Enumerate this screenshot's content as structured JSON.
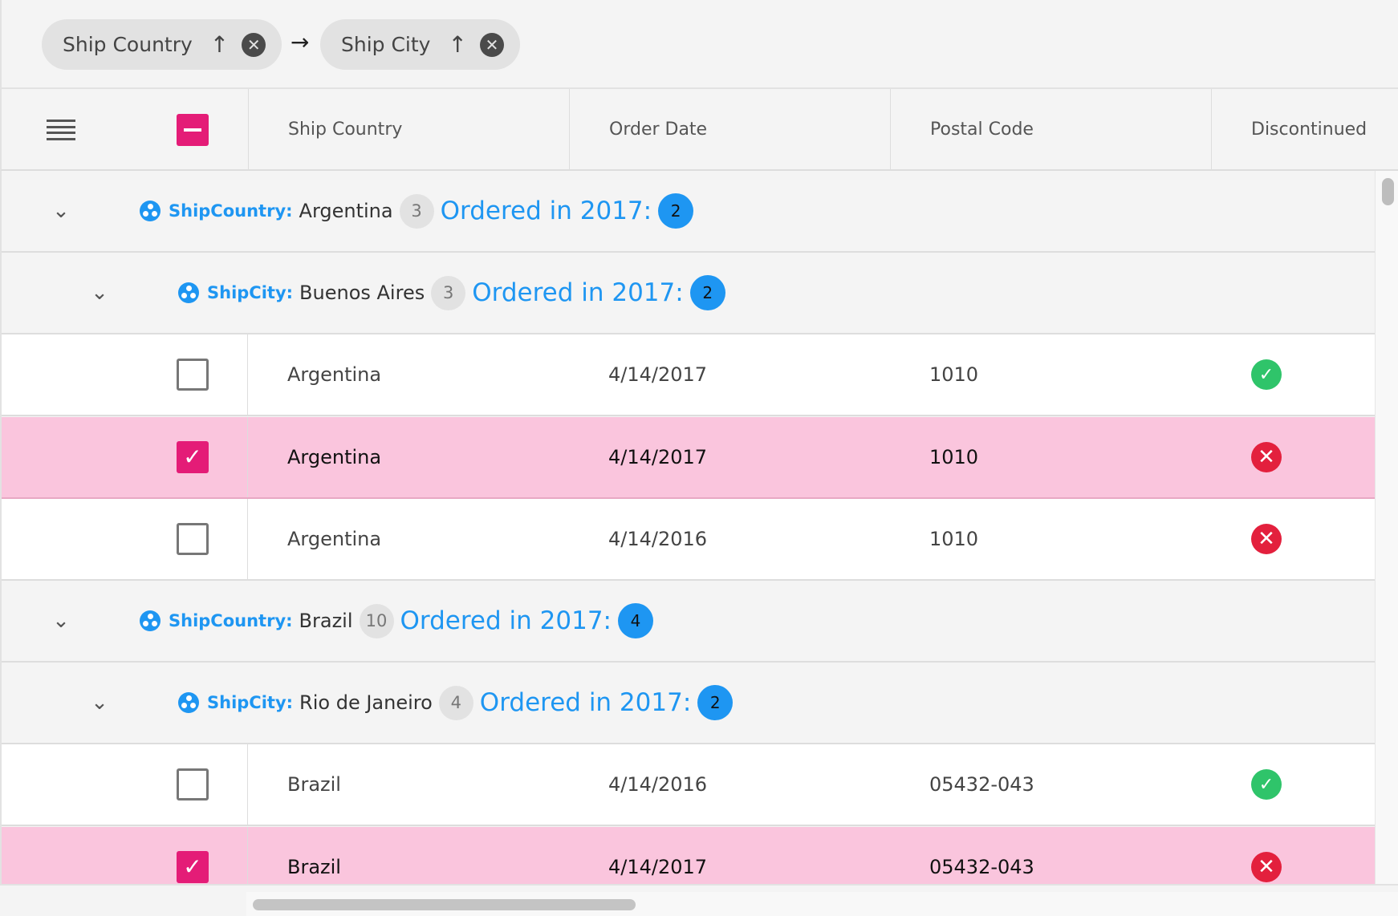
{
  "group_by": {
    "chips": [
      {
        "label": "Ship Country",
        "sort": "ascending"
      },
      {
        "label": "Ship City",
        "sort": "ascending"
      }
    ]
  },
  "columns": [
    "Ship Country",
    "Order Date",
    "Postal Code",
    "Discontinued"
  ],
  "header_checkbox": "indeterminate",
  "rows": [
    {
      "type": "group",
      "level": 1,
      "field": "ShipCountry:",
      "value": "Argentina",
      "count": "3",
      "summary": "Ordered in 2017:",
      "summary_value": "2"
    },
    {
      "type": "group",
      "level": 2,
      "field": "ShipCity:",
      "value": "Buenos Aires",
      "count": "3",
      "summary": "Ordered in 2017:",
      "summary_value": "2"
    },
    {
      "type": "data",
      "selected": false,
      "cells": [
        "Argentina",
        "4/14/2017",
        "1010"
      ],
      "discontinued": true
    },
    {
      "type": "data",
      "selected": true,
      "cells": [
        "Argentina",
        "4/14/2017",
        "1010"
      ],
      "discontinued": false
    },
    {
      "type": "data",
      "selected": false,
      "cells": [
        "Argentina",
        "4/14/2016",
        "1010"
      ],
      "discontinued": false
    },
    {
      "type": "group",
      "level": 1,
      "field": "ShipCountry:",
      "value": "Brazil",
      "count": "10",
      "summary": "Ordered in 2017:",
      "summary_value": "4"
    },
    {
      "type": "group",
      "level": 2,
      "field": "ShipCity:",
      "value": "Rio de Janeiro",
      "count": "4",
      "summary": "Ordered in 2017:",
      "summary_value": "2"
    },
    {
      "type": "data",
      "selected": false,
      "cells": [
        "Brazil",
        "4/14/2016",
        "05432-043"
      ],
      "discontinued": true
    },
    {
      "type": "data",
      "selected": true,
      "cells": [
        "Brazil",
        "4/14/2017",
        "05432-043"
      ],
      "discontinued": false
    }
  ],
  "colors": {
    "accent": "#e41c77",
    "group_blue": "#1e96f2",
    "selected_row": "#fac5dd",
    "ok": "#2fc46a",
    "no": "#e3203d"
  }
}
